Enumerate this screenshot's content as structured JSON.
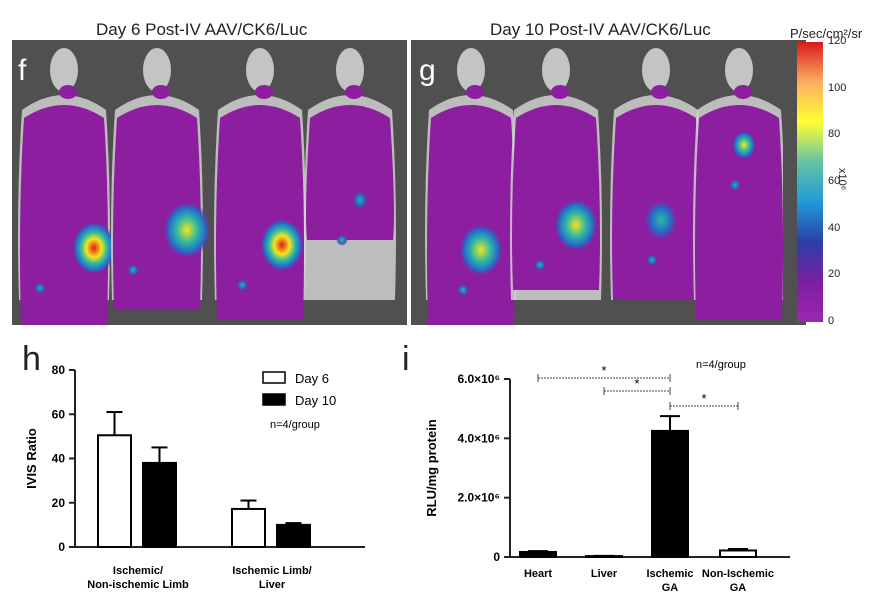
{
  "figure": {
    "title_f": "Day 6 Post-IV AAV/CK6/Luc",
    "title_g": "Day 10 Post-IV AAV/CK6/Luc",
    "label_f": "f",
    "label_g": "g",
    "label_h": "h",
    "label_i": "i",
    "colorbar": {
      "unit": "P/sec/cm²/sr",
      "ticks": [
        "120",
        "100",
        "80",
        "60",
        "40",
        "20",
        "0"
      ],
      "exponent": "x10⁶",
      "colors": [
        "#d7191c",
        "#fdae61",
        "#ffff33",
        "#66c2a5",
        "#1f9bd7",
        "#2b3fa8",
        "#7b1fa2",
        "#9c27b0"
      ]
    },
    "mice_colors": {
      "body": "#d8d8d8",
      "signal": "#8e1ea0",
      "hot": "#e31a1c",
      "warm": "#f5e51b",
      "mid": "#2cb7a6",
      "cool": "#2a62c9"
    }
  },
  "chart_data": [
    {
      "type": "bar",
      "panel": "h",
      "ylabel": "IVIS Ratio",
      "ylim": [
        0,
        80
      ],
      "yticks": [
        "0",
        "20",
        "40",
        "60",
        "80"
      ],
      "categories": [
        "Ischemic/ Non-ischemic Limb",
        "Ischemic Limb/ Liver"
      ],
      "category_lines": [
        [
          "Ischemic/",
          "Non-ischemic  Limb"
        ],
        [
          "Ischemic  Limb/",
          "Liver"
        ]
      ],
      "series": [
        {
          "name": "Day 6",
          "values": [
            50.5,
            17.2
          ],
          "errors": [
            10.5,
            3.8
          ],
          "fill": "#ffffff"
        },
        {
          "name": "Day 10",
          "values": [
            38,
            10
          ],
          "errors": [
            7,
            0.8
          ],
          "fill": "#000000"
        }
      ],
      "annotation": "n=4/group"
    },
    {
      "type": "bar",
      "panel": "i",
      "ylabel": "RLU/mg protein",
      "ylim": [
        0,
        6.0
      ],
      "yticks": [
        "0",
        "2.0×10⁶",
        "4.0×10⁶",
        "6.0×10⁶"
      ],
      "categories": [
        "Heart",
        "Liver",
        "Ischemic GA",
        "Non-Ischemic GA"
      ],
      "category_lines": [
        [
          "Heart"
        ],
        [
          "Liver"
        ],
        [
          "Ischemic",
          "GA"
        ],
        [
          "Non-Ischemic",
          "GA"
        ]
      ],
      "values": [
        0.17,
        0.03,
        4.25,
        0.22
      ],
      "errors": [
        0.03,
        0.01,
        0.5,
        0.05
      ],
      "fills": [
        "#000000",
        "#000000",
        "#000000",
        "#ffffff"
      ],
      "annotation": "n=4/group",
      "significance": [
        "*",
        "*",
        "*"
      ]
    }
  ]
}
